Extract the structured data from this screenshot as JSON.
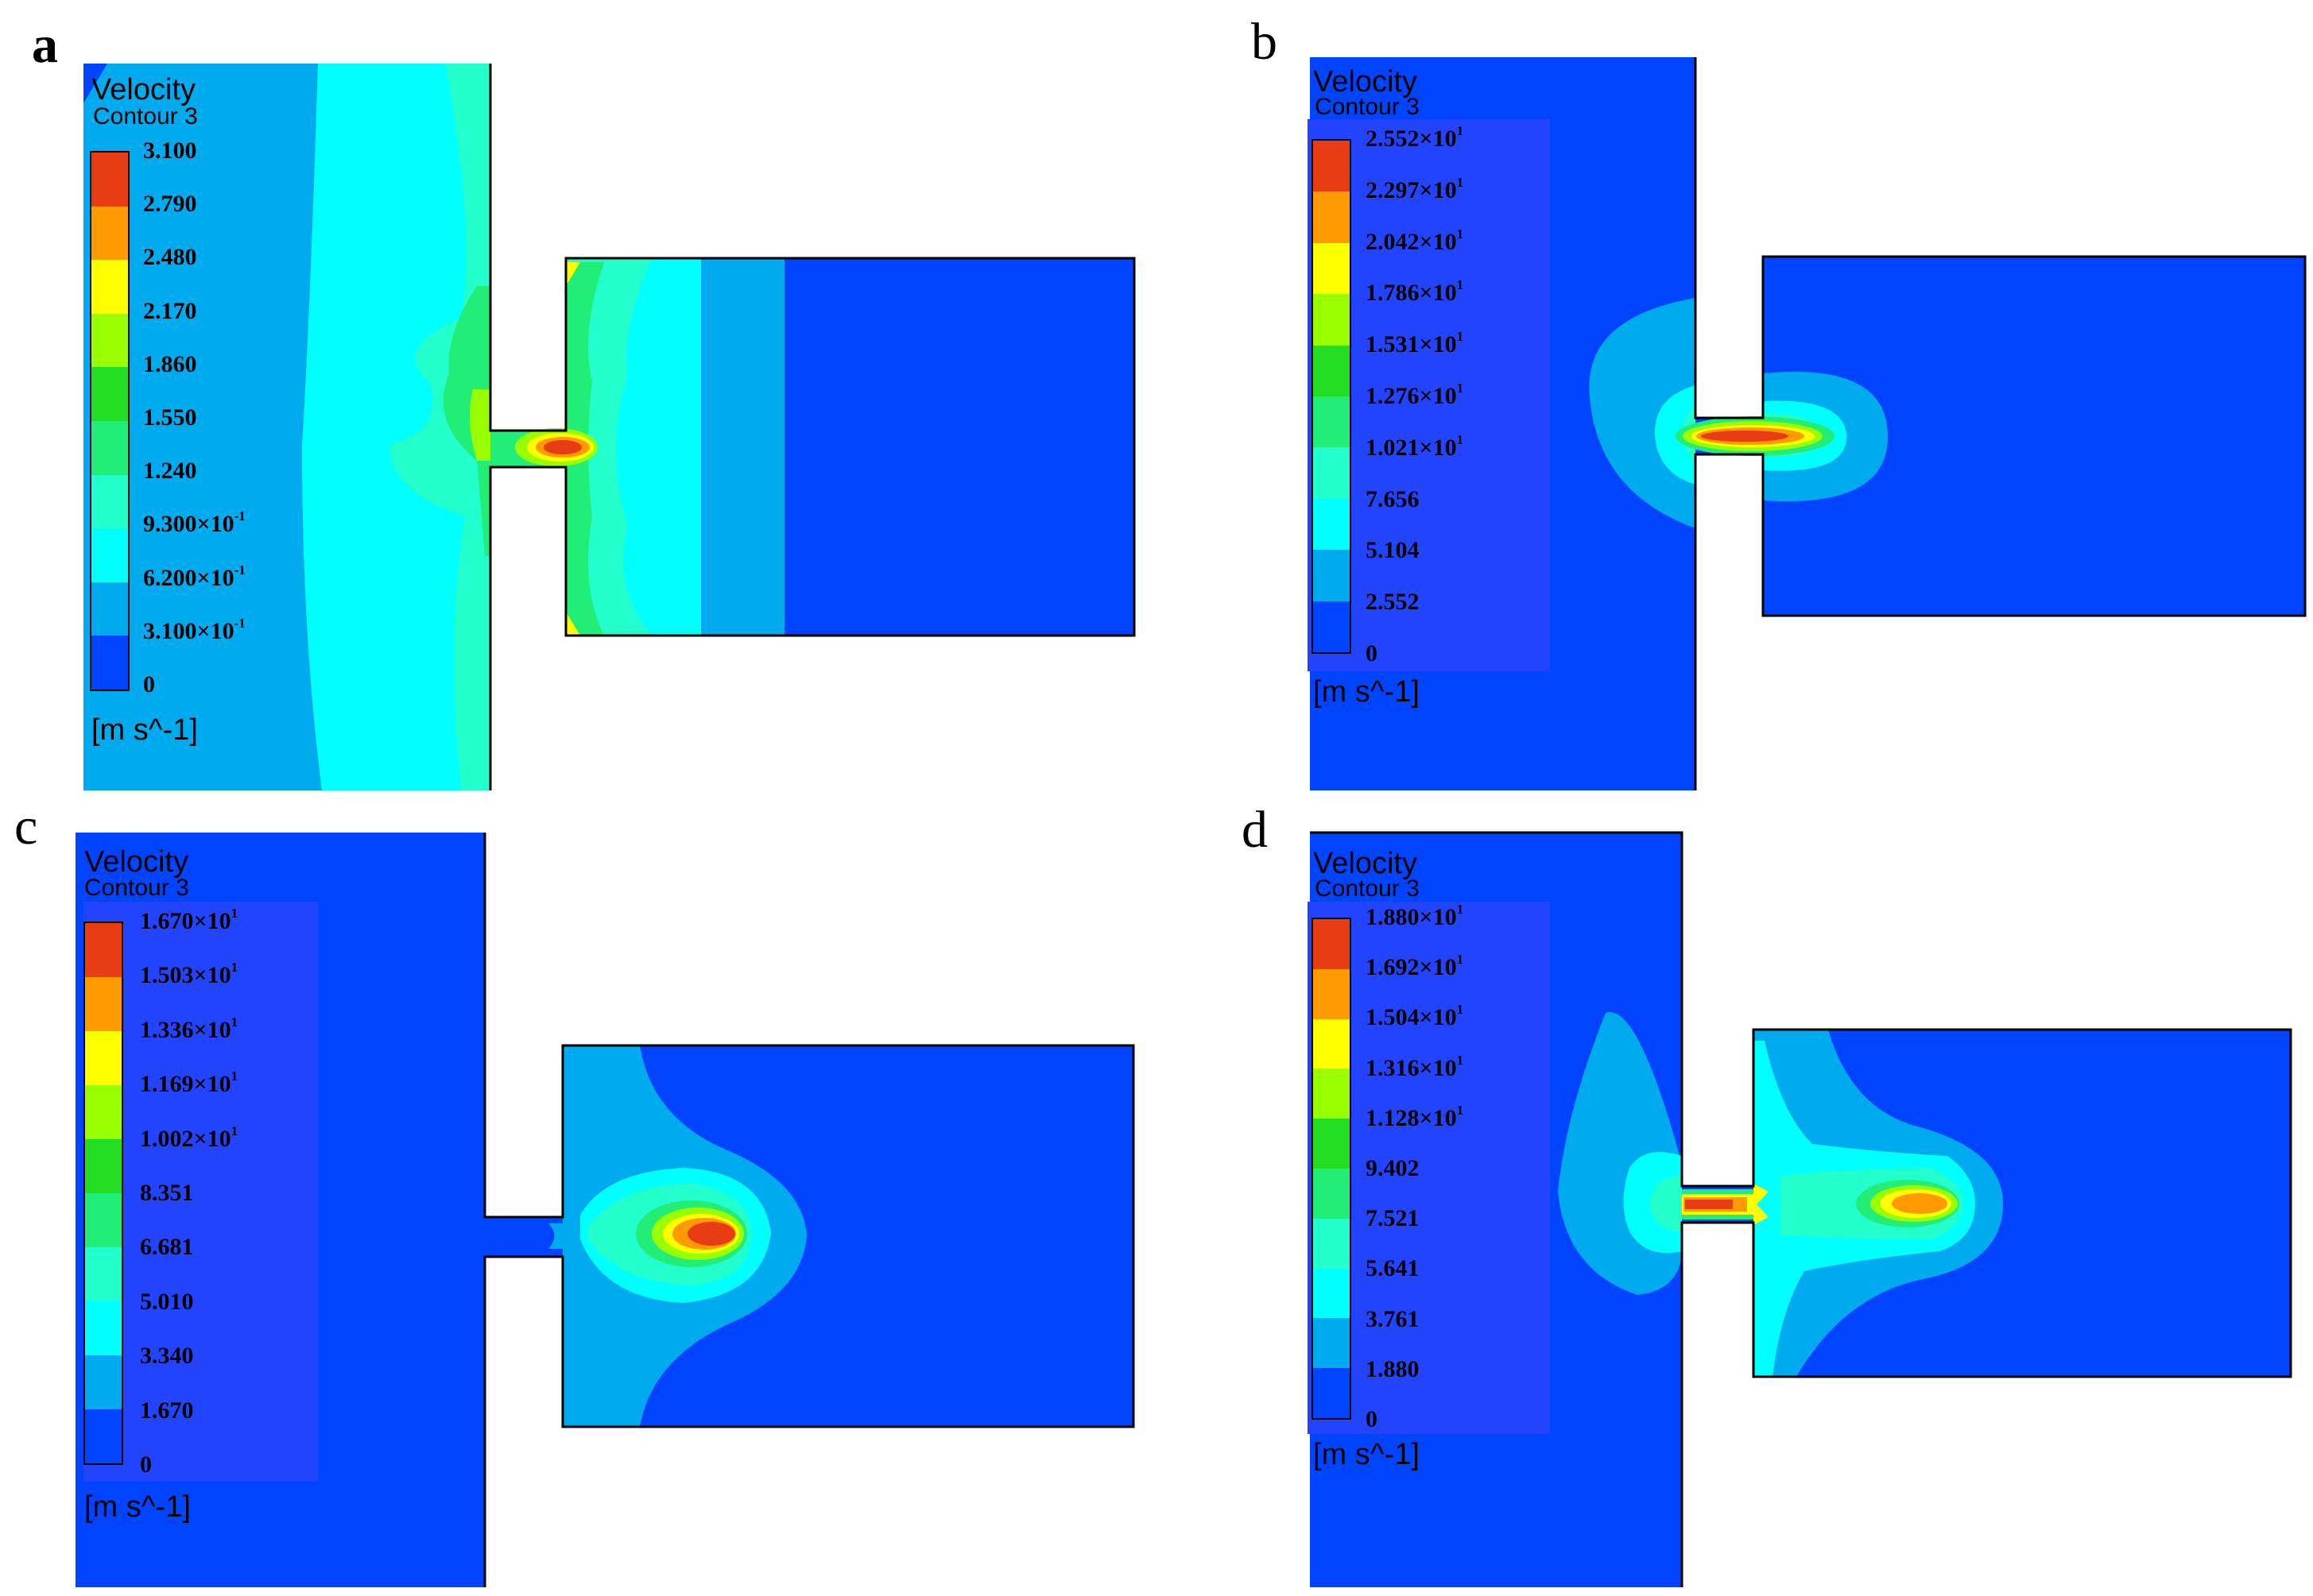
{
  "panels": [
    {
      "id": "a",
      "letter": "a",
      "legend_title": "Velocity",
      "legend_subtitle": "Contour 3",
      "unit": "[m s^-1]",
      "ticks": [
        {
          "m": "3.100",
          "e": ""
        },
        {
          "m": "2.790",
          "e": ""
        },
        {
          "m": "2.480",
          "e": ""
        },
        {
          "m": "2.170",
          "e": ""
        },
        {
          "m": "1.860",
          "e": ""
        },
        {
          "m": "1.550",
          "e": ""
        },
        {
          "m": "1.240",
          "e": ""
        },
        {
          "m": "9.300×10",
          "e": "-1"
        },
        {
          "m": "6.200×10",
          "e": "-1"
        },
        {
          "m": "3.100×10",
          "e": "-1"
        },
        {
          "m": "0",
          "e": ""
        }
      ]
    },
    {
      "id": "b",
      "letter": "b",
      "legend_title": "Velocity",
      "legend_subtitle": "Contour 3",
      "unit": "[m s^-1]",
      "ticks": [
        {
          "m": "2.552×10",
          "e": "1"
        },
        {
          "m": "2.297×10",
          "e": "1"
        },
        {
          "m": "2.042×10",
          "e": "1"
        },
        {
          "m": "1.786×10",
          "e": "1"
        },
        {
          "m": "1.531×10",
          "e": "1"
        },
        {
          "m": "1.276×10",
          "e": "1"
        },
        {
          "m": "1.021×10",
          "e": "1"
        },
        {
          "m": "7.656",
          "e": ""
        },
        {
          "m": "5.104",
          "e": ""
        },
        {
          "m": "2.552",
          "e": ""
        },
        {
          "m": "0",
          "e": ""
        }
      ]
    },
    {
      "id": "c",
      "letter": "c",
      "legend_title": "Velocity",
      "legend_subtitle": "Contour 3",
      "unit": "[m s^-1]",
      "ticks": [
        {
          "m": "1.670×10",
          "e": "1"
        },
        {
          "m": "1.503×10",
          "e": "1"
        },
        {
          "m": "1.336×10",
          "e": "1"
        },
        {
          "m": "1.169×10",
          "e": "1"
        },
        {
          "m": "1.002×10",
          "e": "1"
        },
        {
          "m": "8.351",
          "e": ""
        },
        {
          "m": "6.681",
          "e": ""
        },
        {
          "m": "5.010",
          "e": ""
        },
        {
          "m": "3.340",
          "e": ""
        },
        {
          "m": "1.670",
          "e": ""
        },
        {
          "m": "0",
          "e": ""
        }
      ]
    },
    {
      "id": "d",
      "letter": "d",
      "legend_title": "Velocity",
      "legend_subtitle": "Contour 3",
      "unit": "[m s^-1]",
      "ticks": [
        {
          "m": "1.880×10",
          "e": "1"
        },
        {
          "m": "1.692×10",
          "e": "1"
        },
        {
          "m": "1.504×10",
          "e": "1"
        },
        {
          "m": "1.316×10",
          "e": "1"
        },
        {
          "m": "1.128×10",
          "e": "1"
        },
        {
          "m": "9.402",
          "e": ""
        },
        {
          "m": "7.521",
          "e": ""
        },
        {
          "m": "5.641",
          "e": ""
        },
        {
          "m": "3.761",
          "e": ""
        },
        {
          "m": "1.880",
          "e": ""
        },
        {
          "m": "0",
          "e": ""
        }
      ]
    }
  ],
  "colorscale": [
    "#e83d14",
    "#ff9a00",
    "#ffff00",
    "#99ff00",
    "#22dd22",
    "#22ee77",
    "#22ffcc",
    "#00ffff",
    "#00aaee",
    "#0044ff"
  ]
}
